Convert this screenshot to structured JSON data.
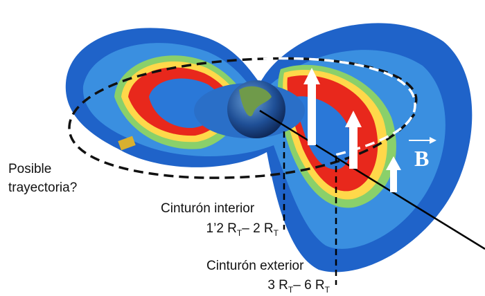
{
  "trajectory_label": [
    "Posible",
    "trayectoria?"
  ],
  "inner_belt": {
    "name": "Cinturón interior",
    "range": [
      {
        "text": "1’2 R",
        "sub": "T"
      },
      {
        "text": "– 2 R",
        "sub": "T"
      }
    ]
  },
  "outer_belt": {
    "name": "Cinturón exterior",
    "range": [
      {
        "text": "3 R",
        "sub": "T"
      },
      {
        "text": "– 6 R",
        "sub": "T"
      }
    ]
  },
  "field_label": "B"
}
